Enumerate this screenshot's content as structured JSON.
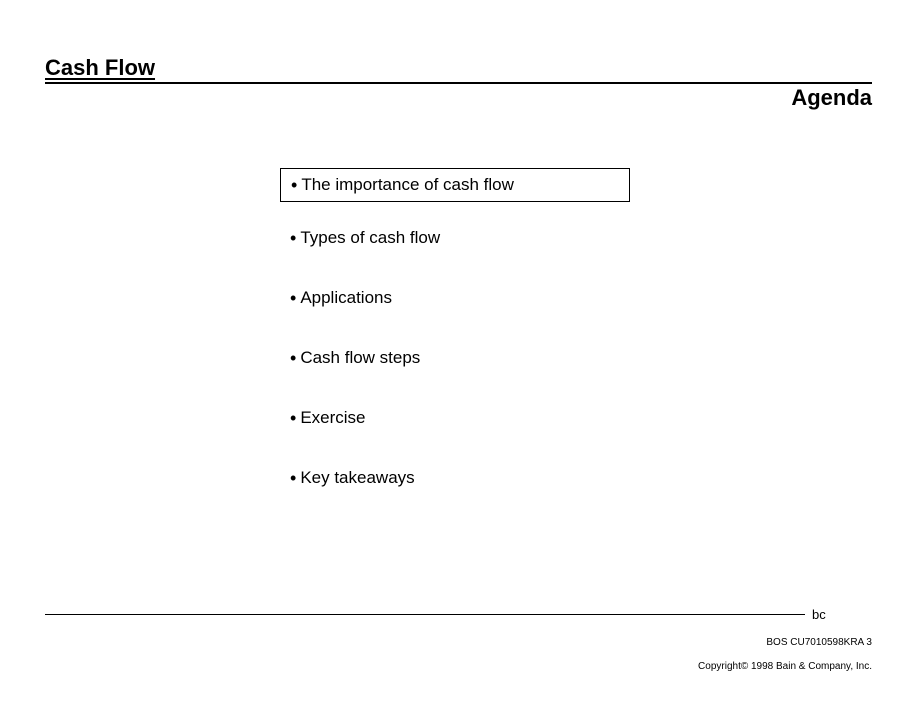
{
  "header": {
    "title": "Cash Flow",
    "subtitle": "Agenda"
  },
  "agenda": {
    "items": [
      {
        "label": "The importance of cash flow",
        "highlighted": true
      },
      {
        "label": "Types of cash flow",
        "highlighted": false
      },
      {
        "label": "Applications",
        "highlighted": false
      },
      {
        "label": "Cash flow steps",
        "highlighted": false
      },
      {
        "label": "Exercise",
        "highlighted": false
      },
      {
        "label": "Key takeaways",
        "highlighted": false
      }
    ]
  },
  "footer": {
    "logo": "bc",
    "code": "BOS    CU7010598KRA  3",
    "copyright": "Copyright© 1998 Bain & Company, Inc."
  },
  "styling": {
    "background_color": "#ffffff",
    "text_color": "#000000",
    "rule_color": "#000000",
    "title_fontsize": 22,
    "item_fontsize": 17,
    "footer_fontsize": 10
  }
}
